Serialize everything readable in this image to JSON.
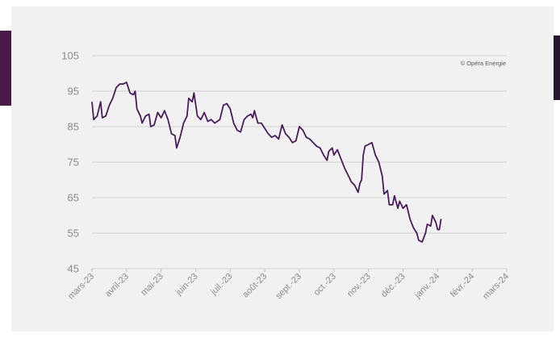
{
  "credit": "© Opéra Energie",
  "colors": {
    "line": "#4a1a5c",
    "grid": "#d8d8d8",
    "accent": "#4a1b4a"
  },
  "chart_data": {
    "type": "line",
    "title": "",
    "xlabel": "",
    "ylabel": "",
    "ylim": [
      45,
      105
    ],
    "yticks": [
      105,
      95,
      85,
      75,
      65,
      55,
      45
    ],
    "xticks": [
      "mars-23",
      "avril-23",
      "mai-23",
      "juin-23",
      "juil.-23",
      "août-23",
      "sept.-23",
      "oct.-23",
      "nov.-23",
      "déc.-23",
      "janv.-24",
      "févr.-24",
      "mars-24"
    ],
    "grid": true,
    "series": [
      {
        "values": [
          [
            0,
            92
          ],
          [
            0.05,
            87
          ],
          [
            0.15,
            88
          ],
          [
            0.25,
            92
          ],
          [
            0.3,
            87.5
          ],
          [
            0.4,
            88
          ],
          [
            0.5,
            91
          ],
          [
            0.6,
            93
          ],
          [
            0.7,
            96
          ],
          [
            0.8,
            97
          ],
          [
            0.9,
            97
          ],
          [
            1.0,
            97.5
          ],
          [
            1.1,
            94.5
          ],
          [
            1.2,
            94
          ],
          [
            1.25,
            95
          ],
          [
            1.3,
            90
          ],
          [
            1.4,
            88
          ],
          [
            1.45,
            86
          ],
          [
            1.55,
            88
          ],
          [
            1.65,
            88.5
          ],
          [
            1.7,
            85
          ],
          [
            1.8,
            85.5
          ],
          [
            1.9,
            89
          ],
          [
            2.0,
            87.5
          ],
          [
            2.1,
            89.5
          ],
          [
            2.2,
            87
          ],
          [
            2.3,
            83
          ],
          [
            2.4,
            82.5
          ],
          [
            2.45,
            79
          ],
          [
            2.55,
            82
          ],
          [
            2.65,
            86
          ],
          [
            2.75,
            88
          ],
          [
            2.8,
            93
          ],
          [
            2.9,
            92
          ],
          [
            2.95,
            94.5
          ],
          [
            3.05,
            88
          ],
          [
            3.15,
            87
          ],
          [
            3.25,
            89
          ],
          [
            3.35,
            86.5
          ],
          [
            3.45,
            87
          ],
          [
            3.55,
            86
          ],
          [
            3.7,
            87
          ],
          [
            3.8,
            91
          ],
          [
            3.9,
            91.5
          ],
          [
            4.0,
            90
          ],
          [
            4.1,
            86
          ],
          [
            4.2,
            84
          ],
          [
            4.3,
            83.5
          ],
          [
            4.4,
            87
          ],
          [
            4.5,
            88
          ],
          [
            4.6,
            88.5
          ],
          [
            4.65,
            87.5
          ],
          [
            4.7,
            89.5
          ],
          [
            4.8,
            86
          ],
          [
            4.9,
            86
          ],
          [
            5.0,
            84.5
          ],
          [
            5.1,
            83
          ],
          [
            5.2,
            82
          ],
          [
            5.3,
            82.5
          ],
          [
            5.4,
            81.5
          ],
          [
            5.5,
            85.5
          ],
          [
            5.6,
            83
          ],
          [
            5.7,
            82
          ],
          [
            5.8,
            80.5
          ],
          [
            5.9,
            81
          ],
          [
            6.0,
            85
          ],
          [
            6.1,
            84
          ],
          [
            6.2,
            82
          ],
          [
            6.3,
            81.5
          ],
          [
            6.4,
            80.5
          ],
          [
            6.5,
            79.5
          ],
          [
            6.6,
            79
          ],
          [
            6.7,
            77
          ],
          [
            6.8,
            75.5
          ],
          [
            6.85,
            78
          ],
          [
            6.95,
            79
          ],
          [
            7.0,
            77
          ],
          [
            7.1,
            78.5
          ],
          [
            7.2,
            76
          ],
          [
            7.3,
            73.5
          ],
          [
            7.4,
            71.5
          ],
          [
            7.5,
            69.5
          ],
          [
            7.6,
            68.5
          ],
          [
            7.7,
            66.5
          ],
          [
            7.75,
            69
          ],
          [
            7.8,
            70
          ],
          [
            7.85,
            77
          ],
          [
            7.9,
            79.5
          ],
          [
            8.0,
            80
          ],
          [
            8.1,
            80.5
          ],
          [
            8.2,
            77
          ],
          [
            8.3,
            75
          ],
          [
            8.4,
            71
          ],
          [
            8.45,
            66
          ],
          [
            8.55,
            67
          ],
          [
            8.6,
            63
          ],
          [
            8.7,
            63
          ],
          [
            8.75,
            65.5
          ],
          [
            8.85,
            62
          ],
          [
            8.9,
            64
          ],
          [
            9.0,
            62
          ],
          [
            9.1,
            63
          ],
          [
            9.2,
            59
          ],
          [
            9.3,
            56.5
          ],
          [
            9.4,
            55
          ],
          [
            9.45,
            53
          ],
          [
            9.55,
            52.5
          ],
          [
            9.65,
            55
          ],
          [
            9.7,
            57.5
          ],
          [
            9.8,
            57
          ],
          [
            9.85,
            60
          ],
          [
            9.95,
            58
          ],
          [
            10.0,
            56
          ],
          [
            10.05,
            56
          ],
          [
            10.1,
            59
          ]
        ]
      }
    ]
  }
}
